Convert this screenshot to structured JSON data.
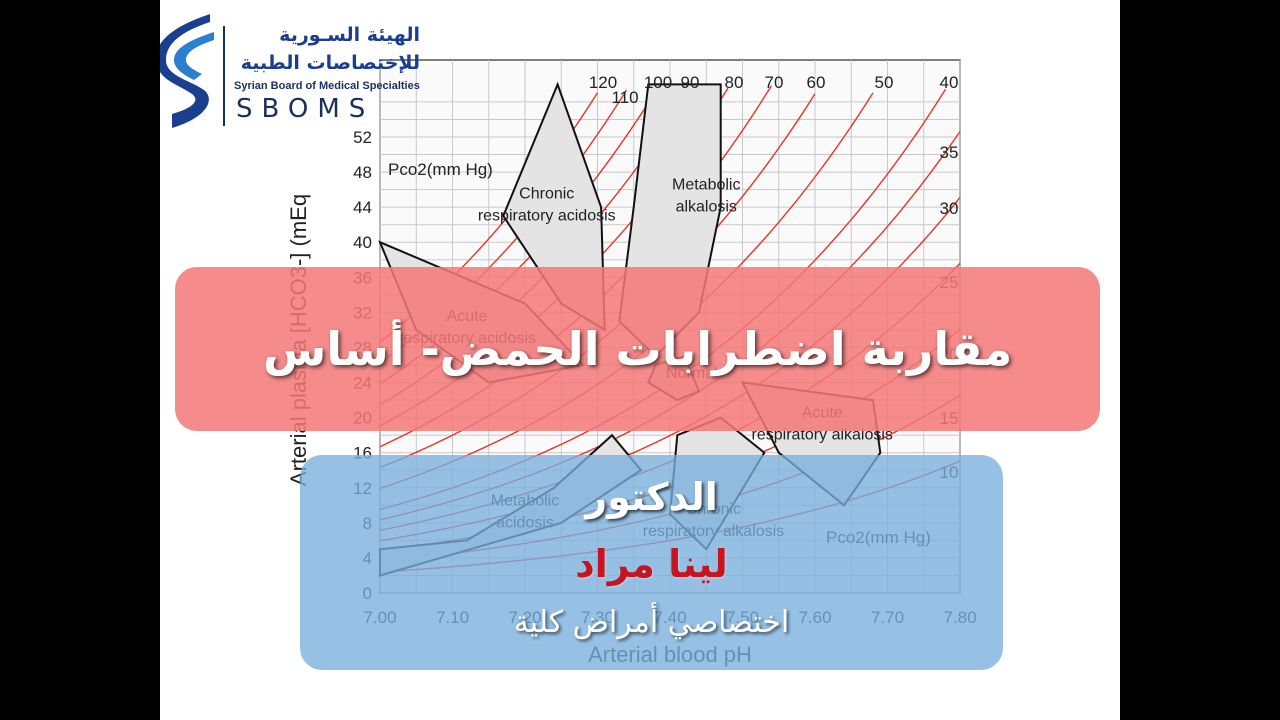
{
  "logo": {
    "arabic_line1": "الهيئة السـورية",
    "arabic_line2": "للإختصاصات الطبية",
    "english_name": "Syrian Board of Medical Specialties",
    "abbr": "SBOMS",
    "colors": {
      "primary": "#1a3f8f",
      "accent": "#2a7fd0"
    }
  },
  "title": "مقاربة اضطرابات الحمض- أساس",
  "speaker": {
    "role": "الدكتور",
    "name": "لينا مراد",
    "specialty": "اختصاصي أمراض كلية"
  },
  "chart_data": {
    "type": "line",
    "xlabel": "Arterial blood pH",
    "ylabel": "Arterial plasma [HCO3-] (mEq",
    "x_ticks": [
      "7.00",
      "7.10",
      "7.20",
      "7.30",
      "7.40",
      "7.50",
      "7.60",
      "7.70",
      "7.80"
    ],
    "y_ticks": [
      "0",
      "4",
      "8",
      "12",
      "16",
      "20",
      "24",
      "28",
      "32",
      "36",
      "40",
      "44",
      "48",
      "52"
    ],
    "xlim": [
      7.0,
      7.8
    ],
    "ylim": [
      0,
      52
    ],
    "isobar_label": "Pco2(mm Hg)",
    "isobars_top": [
      "120",
      "110",
      "100",
      "90",
      "80",
      "70",
      "60",
      "50",
      "40"
    ],
    "isobars_right": [
      "35",
      "30",
      "25",
      "20",
      "15",
      "10"
    ],
    "isobar_values": [
      120,
      110,
      100,
      90,
      80,
      70,
      60,
      50,
      40,
      35,
      30,
      25,
      20,
      15,
      10
    ],
    "regions": [
      "Chronic respiratory acidosis",
      "Metabolic alkalosis",
      "Acute respiratory acidosis",
      "Normal",
      "Acute respiratory alkalosis",
      "Metabolic acidosis",
      "Chronic respiratory alkalosis"
    ],
    "grid": true,
    "colors": {
      "isobar": "#e8332d",
      "grid": "#c8c8c8",
      "region_fill": "#e4e4e4"
    }
  }
}
